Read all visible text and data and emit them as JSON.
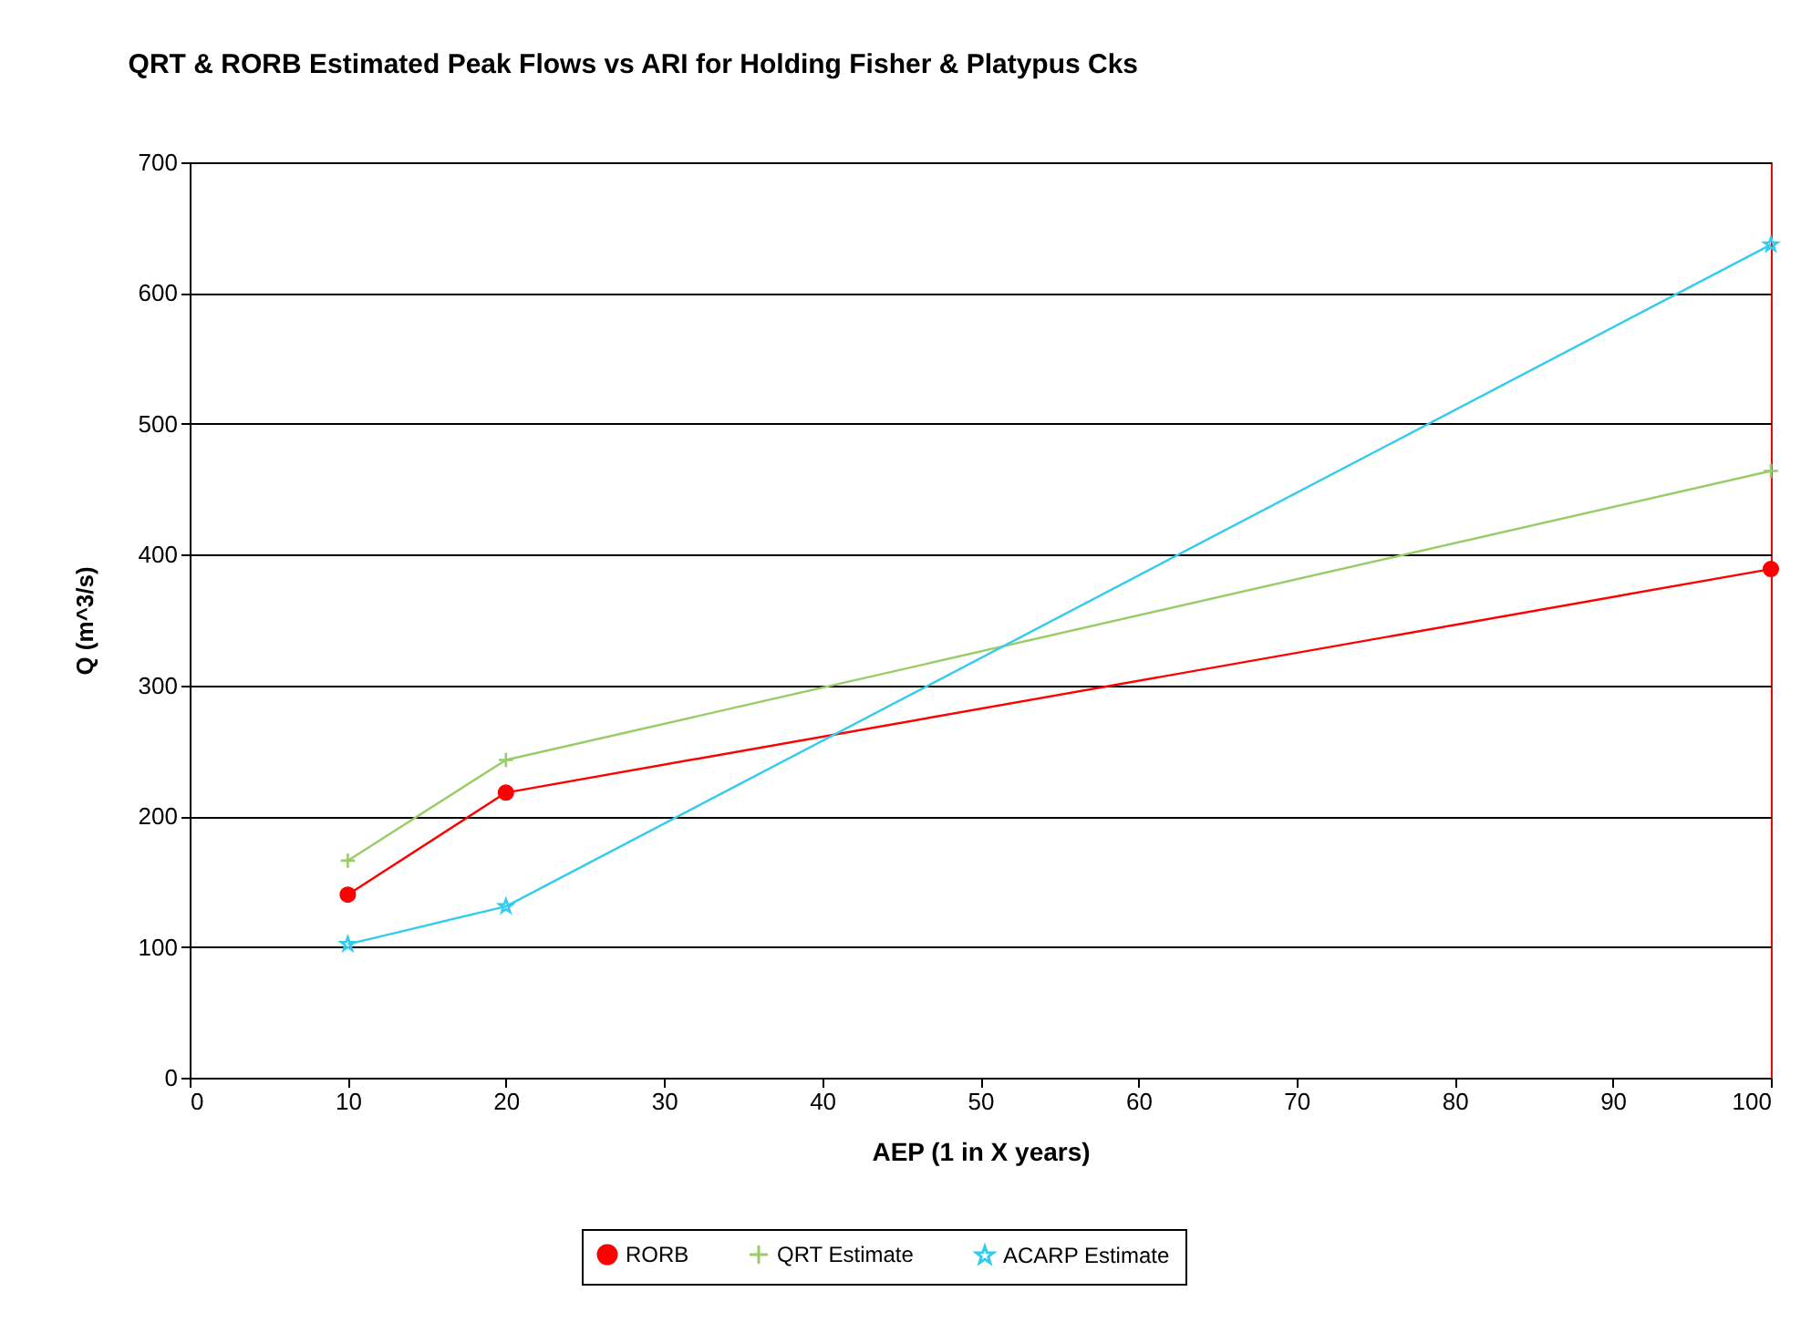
{
  "chart_data": {
    "type": "line",
    "title": "QRT & RORB Estimated Peak Flows vs ARI for Holding Fisher & Platypus Cks",
    "xlabel": "AEP (1 in X years)",
    "ylabel": "Q (m^3/s)",
    "x": [
      10,
      20,
      100
    ],
    "series": [
      {
        "name": "RORB",
        "color": "#ff0000",
        "marker": "circle",
        "values": [
          140,
          218,
          389
        ]
      },
      {
        "name": "QRT Estimate",
        "color": "#99cc66",
        "marker": "cross",
        "values": [
          166,
          243,
          464
        ]
      },
      {
        "name": "ACARP Estimate",
        "color": "#33ccee",
        "marker": "star",
        "values": [
          102,
          131,
          637
        ]
      }
    ],
    "xlim": [
      0,
      100
    ],
    "xticks": [
      0,
      10,
      20,
      30,
      40,
      50,
      60,
      70,
      80,
      90,
      100
    ],
    "ylim": [
      0,
      700
    ],
    "yticks": [
      0,
      100,
      200,
      300,
      400,
      500,
      600,
      700
    ],
    "grid": "y",
    "legend": "bottom",
    "line_style": "solid"
  }
}
